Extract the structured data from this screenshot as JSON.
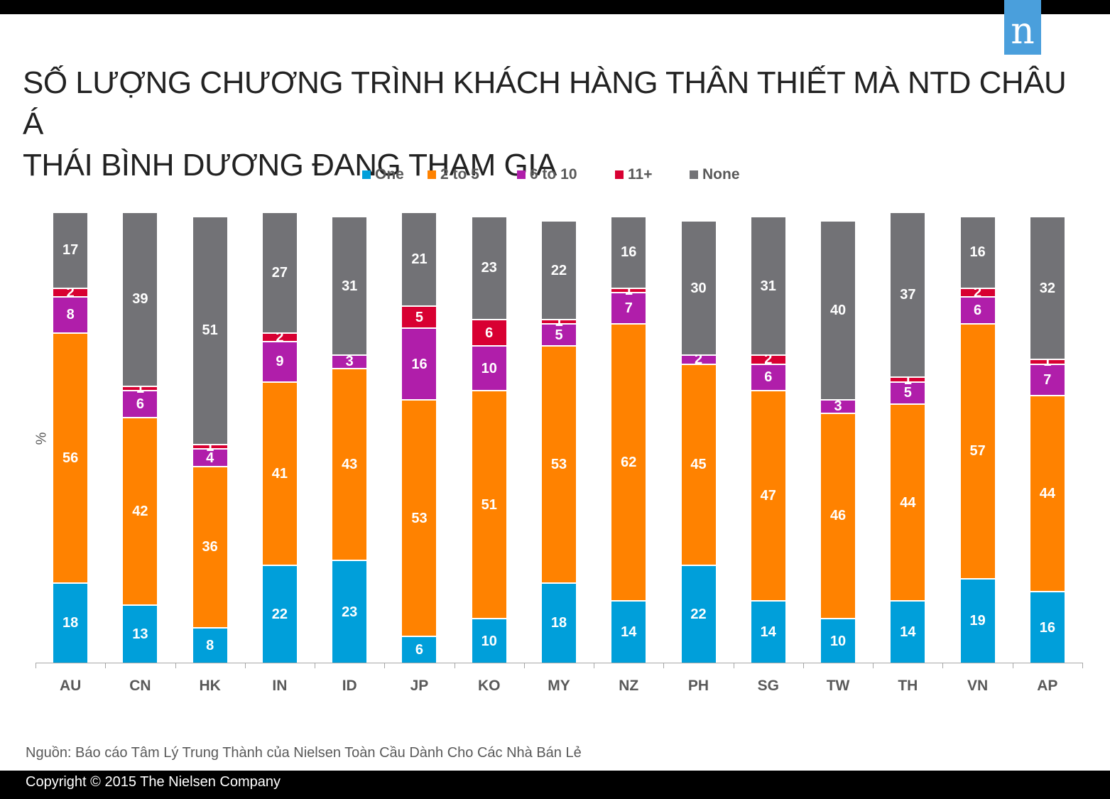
{
  "header": {
    "logo_letter": "n",
    "title_line1": "SỐ LƯỢNG CHƯƠNG TRÌNH KHÁCH HÀNG THÂN THIẾT MÀ NTD CHÂU Á",
    "title_line2": "THÁI BÌNH DƯƠNG ĐANG THAM GIA"
  },
  "colors": {
    "one": "#009fda",
    "two_to_five": "#ff8200",
    "six_to_ten": "#b01eaa",
    "eleven_plus": "#d80032",
    "none": "#727276",
    "logo_bg": "#4a9fdc"
  },
  "legend": [
    {
      "label": "One",
      "color": "#009fda"
    },
    {
      "label": "2 to 5",
      "color": "#ff8200"
    },
    {
      "label": "6 to 10",
      "color": "#b01eaa"
    },
    {
      "label": "11+",
      "color": "#d80032"
    },
    {
      "label": "None",
      "color": "#727276"
    }
  ],
  "y_axis_label": "%",
  "source": "Nguồn: Báo cáo Tâm Lý Trung Thành của Nielsen Toàn Cầu Dành Cho Các Nhà Bán Lẻ",
  "copyright": "Copyright © 2015 The Nielsen Company",
  "chart_data": {
    "type": "bar",
    "stacked": true,
    "title": "SỐ LƯỢNG CHƯƠNG TRÌNH KHÁCH HÀNG THÂN THIẾT MÀ NTD CHÂU Á THÁI BÌNH DƯƠNG ĐANG THAM GIA",
    "xlabel": "",
    "ylabel": "%",
    "ylim": [
      0,
      100
    ],
    "grid": false,
    "legend_position": "top",
    "categories": [
      "AU",
      "CN",
      "HK",
      "IN",
      "ID",
      "JP",
      "KO",
      "MY",
      "NZ",
      "PH",
      "SG",
      "TW",
      "TH",
      "VN",
      "AP"
    ],
    "series": [
      {
        "name": "One",
        "color": "#009fda",
        "values": [
          18,
          13,
          8,
          22,
          23,
          6,
          10,
          18,
          14,
          22,
          14,
          10,
          14,
          19,
          16
        ]
      },
      {
        "name": "2 to 5",
        "color": "#ff8200",
        "values": [
          56,
          42,
          36,
          41,
          43,
          53,
          51,
          53,
          62,
          45,
          47,
          46,
          44,
          57,
          44
        ]
      },
      {
        "name": "6 to 10",
        "color": "#b01eaa",
        "values": [
          8,
          6,
          4,
          9,
          3,
          16,
          10,
          5,
          7,
          2,
          6,
          3,
          5,
          6,
          7
        ]
      },
      {
        "name": "11+",
        "color": "#d80032",
        "values": [
          2,
          1,
          1,
          2,
          0,
          5,
          6,
          1,
          1,
          0,
          2,
          0,
          1,
          2,
          1
        ]
      },
      {
        "name": "None",
        "color": "#727276",
        "values": [
          17,
          39,
          51,
          27,
          31,
          21,
          23,
          22,
          16,
          30,
          31,
          40,
          37,
          16,
          32
        ]
      }
    ]
  }
}
